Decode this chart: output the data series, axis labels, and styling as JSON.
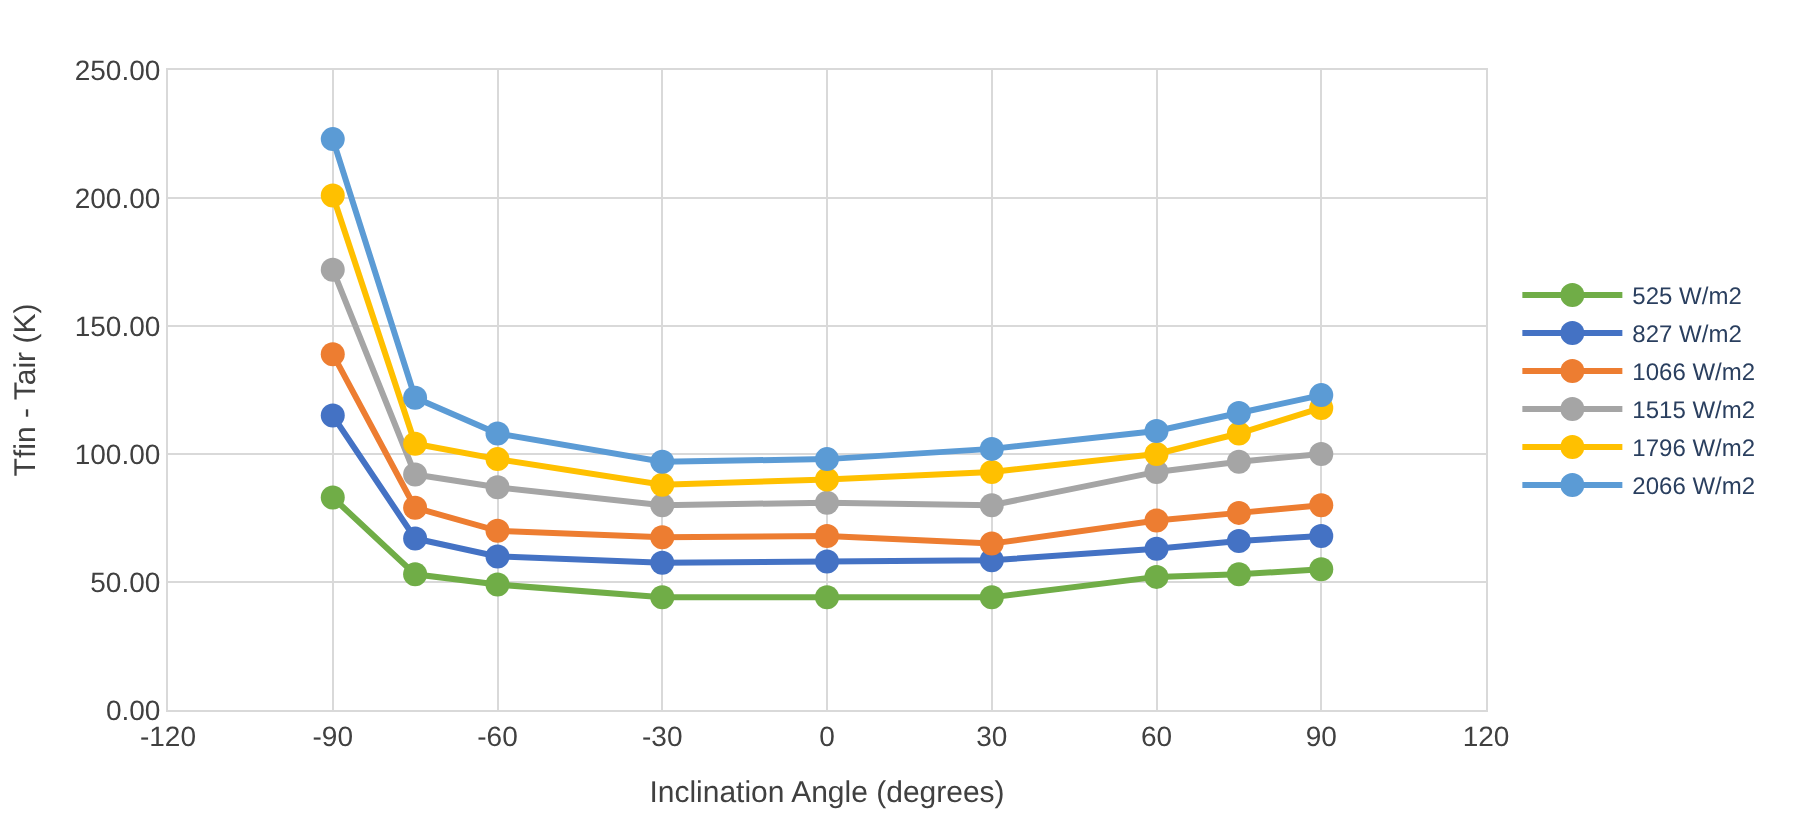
{
  "chart_data": {
    "type": "line",
    "xlabel": "Inclination Angle (degrees)",
    "ylabel": "Tfin - Tair (K)",
    "x": [
      -90,
      -75,
      -60,
      -30,
      0,
      30,
      60,
      75,
      90
    ],
    "series": [
      {
        "name": "525 W/m2",
        "color": "#70ad47",
        "values": [
          83,
          53,
          49,
          44,
          44,
          44,
          52,
          53,
          55
        ]
      },
      {
        "name": "827 W/m2",
        "color": "#4472c4",
        "values": [
          115,
          67,
          60,
          57.5,
          58,
          58.5,
          63,
          66,
          68
        ]
      },
      {
        "name": "1066 W/m2",
        "color": "#ed7d31",
        "values": [
          139,
          79,
          70,
          67.5,
          68,
          65,
          74,
          77,
          80
        ]
      },
      {
        "name": "1515 W/m2",
        "color": "#a5a5a5",
        "values": [
          172,
          92,
          87,
          80,
          81,
          80,
          93,
          97,
          100
        ]
      },
      {
        "name": "1796 W/m2",
        "color": "#ffc000",
        "values": [
          201,
          104,
          98,
          88,
          90,
          93,
          100,
          108,
          118
        ]
      },
      {
        "name": "2066 W/m2",
        "color": "#5b9bd5",
        "values": [
          223,
          122,
          108,
          97,
          98,
          102,
          109,
          116,
          123
        ]
      }
    ],
    "xlim": [
      -120,
      120
    ],
    "xticks": [
      -120,
      -90,
      -60,
      -30,
      0,
      30,
      60,
      90,
      120
    ],
    "ylim": [
      0,
      250
    ],
    "yticks": [
      {
        "value": 0,
        "label": "0.00"
      },
      {
        "value": 50,
        "label": "50.00"
      },
      {
        "value": 100,
        "label": "100.00"
      },
      {
        "value": 150,
        "label": "150.00"
      },
      {
        "value": 200,
        "label": "200.00"
      },
      {
        "value": 250,
        "label": "250.00"
      }
    ],
    "grid": true,
    "legend": "right",
    "marker": "circle",
    "line_style": "solid"
  }
}
